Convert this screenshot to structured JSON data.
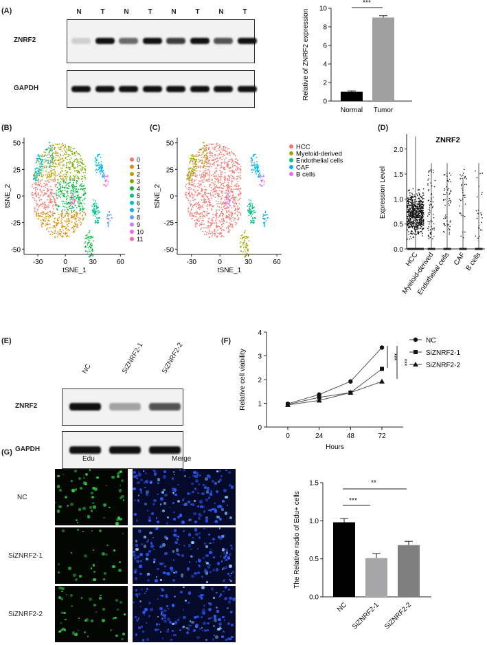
{
  "panels": {
    "a": "(A)",
    "b": "(B)",
    "c": "(C)",
    "d": "(D)",
    "e": "(E)",
    "f": "(F)",
    "g": "(G)"
  },
  "blot_a": {
    "lanes": [
      "N",
      "T",
      "N",
      "T",
      "N",
      "T",
      "N",
      "T"
    ],
    "rows": [
      "ZNRF2",
      "GAPDH"
    ],
    "znrf2_intensity": [
      0.15,
      1,
      0.6,
      1,
      0.8,
      1,
      0.7,
      1
    ]
  },
  "blot_e": {
    "lanes": [
      "NC",
      "SiZNRF2-1",
      "SiZNRF2-2"
    ],
    "rows": [
      "ZNRF2",
      "GAPDH"
    ],
    "znrf2_intensity": [
      1,
      0.35,
      0.7
    ]
  },
  "micro": {
    "columns": [
      "Edu",
      "Merge"
    ],
    "rows": [
      "NC",
      "SiZNRF2-1",
      "SiZNRF2-2"
    ],
    "colors": {
      "edu": "#2ecc40",
      "merge": "#2a5cff"
    }
  },
  "chart_data": [
    {
      "id": "A",
      "type": "bar",
      "categories": [
        "Normal",
        "Tumor"
      ],
      "values": [
        1.0,
        9.0
      ],
      "errors": [
        0.1,
        0.2
      ],
      "colors": [
        "#000000",
        "#a0a0a0"
      ],
      "ylabel": "Relative of ZNRF2 expression",
      "ylim": [
        0,
        10
      ],
      "yticks": [
        "0",
        "2",
        "4",
        "6",
        "8",
        "10"
      ],
      "significance": "***"
    },
    {
      "id": "B",
      "type": "scatter",
      "xlabel": "tSNE_1",
      "ylabel": "tSNE_2",
      "xticks": [
        "-30",
        "0",
        "30",
        "60"
      ],
      "yticks": [
        "-50",
        "-25",
        "0",
        "25",
        "50"
      ],
      "legend": [
        "0",
        "1",
        "2",
        "3",
        "4",
        "5",
        "6",
        "7",
        "8",
        "9",
        "10",
        "11"
      ],
      "legend_placement": "right",
      "colors": [
        "#f8766d",
        "#de8c00",
        "#b79f00",
        "#7cae00",
        "#00ba38",
        "#00c08b",
        "#00bfc4",
        "#00b4f0",
        "#619cff",
        "#c77cff",
        "#f564e3",
        "#ff64b0"
      ]
    },
    {
      "id": "C",
      "type": "scatter",
      "xlabel": "tSNE_1",
      "ylabel": "tSNE_2",
      "xticks": [
        "-30",
        "0",
        "30",
        "60"
      ],
      "yticks": [
        "-50",
        "-25",
        "0",
        "25",
        "50"
      ],
      "legend": [
        "HCC",
        "Myeloid-derived",
        "Endothelial cells",
        "CAF",
        "B cells"
      ],
      "legend_placement": "right",
      "colors": [
        "#f8766d",
        "#a3a500",
        "#00bf7d",
        "#00b0f6",
        "#e76bf3"
      ]
    },
    {
      "id": "D",
      "type": "scatter",
      "title": "ZNRF2",
      "ylabel": "Expression Level",
      "categories": [
        "HCC",
        "Myeloid-derived",
        "Endothelial cells",
        "CAF",
        "B cells"
      ],
      "ylim": [
        0,
        2.3
      ],
      "yticks": [
        "0.0",
        "0.5",
        "1.0",
        "1.5",
        "2.0"
      ],
      "max": [
        2.25,
        1.72,
        1.72,
        1.4,
        1.72
      ]
    },
    {
      "id": "F",
      "type": "line",
      "x": [
        0,
        24,
        48,
        72
      ],
      "xticks": [
        "0",
        "24",
        "48",
        "72"
      ],
      "xlabel": "Hours",
      "ylabel": "Relative cell viability",
      "ylim": [
        0,
        4
      ],
      "yticks": [
        "0",
        "1",
        "2",
        "3",
        "4"
      ],
      "series": [
        {
          "name": "NC",
          "values": [
            0.98,
            1.37,
            1.92,
            3.35
          ],
          "marker": "circle"
        },
        {
          "name": "SiZNRF2-1",
          "values": [
            0.95,
            1.25,
            1.45,
            2.45
          ],
          "marker": "square"
        },
        {
          "name": "SiZNRF2-2",
          "values": [
            0.93,
            1.12,
            1.45,
            1.92
          ],
          "marker": "triangle"
        }
      ],
      "significance": [
        "***",
        "***"
      ]
    },
    {
      "id": "G",
      "type": "bar",
      "categories": [
        "NC",
        "SiZNRF2-1",
        "SiZNRF2-2"
      ],
      "values": [
        0.98,
        0.51,
        0.68
      ],
      "errors": [
        0.05,
        0.06,
        0.05
      ],
      "colors": [
        "#000000",
        "#a6a6a8",
        "#7f7f7f"
      ],
      "ylabel": "The Relative radio of Edu+ cells",
      "ylim": [
        0,
        1.5
      ],
      "yticks": [
        "0.0",
        "0.5",
        "1.0",
        "1.5"
      ],
      "significance": [
        "***",
        "**"
      ]
    }
  ]
}
